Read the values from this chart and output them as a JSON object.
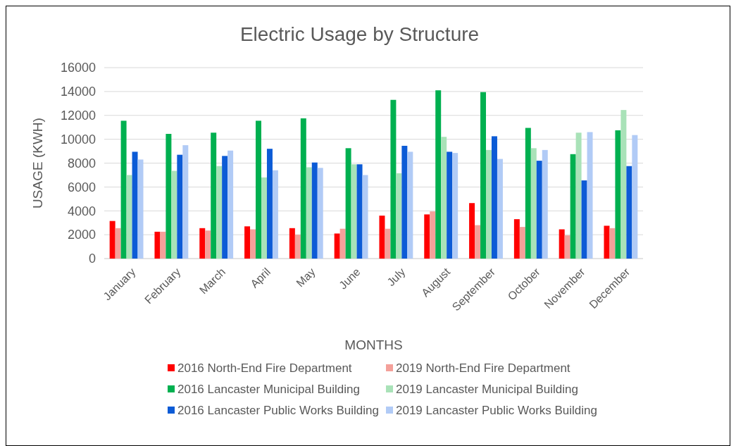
{
  "chart_data": {
    "type": "bar",
    "title": "Electric Usage by Structure",
    "xlabel": "MONTHS",
    "ylabel": "USAGE (KWH)",
    "categories": [
      "January",
      "February",
      "March",
      "April",
      "May",
      "June",
      "July",
      "August",
      "September",
      "October",
      "November",
      "December"
    ],
    "series": [
      {
        "name": "2016 North-End Fire Department",
        "color": "#ff0000",
        "values": [
          3150,
          2250,
          2550,
          2700,
          2550,
          2100,
          3600,
          3700,
          4650,
          3300,
          2450,
          2750
        ]
      },
      {
        "name": "2019 North-End Fire Department",
        "color": "#f4a09a",
        "values": [
          2550,
          2250,
          2350,
          2450,
          2000,
          2500,
          2500,
          3950,
          2800,
          2650,
          1950,
          2550
        ]
      },
      {
        "name": "2016 Lancaster Municipal Building",
        "color": "#00b050",
        "values": [
          11550,
          10450,
          10550,
          11550,
          11750,
          9250,
          13300,
          14100,
          13950,
          10950,
          8750,
          10750
        ]
      },
      {
        "name": "2019 Lancaster Municipal Building",
        "color": "#a9e2b8",
        "values": [
          7000,
          7350,
          7750,
          6800,
          7650,
          7900,
          7150,
          10200,
          9100,
          9250,
          10550,
          12450
        ]
      },
      {
        "name": "2016 Lancaster Public Works Building",
        "color": "#0c5bd6",
        "values": [
          8950,
          8700,
          8600,
          9200,
          8050,
          7900,
          9450,
          8950,
          10250,
          8200,
          6550,
          7750
        ]
      },
      {
        "name": "2019 Lancaster Public Works Building",
        "color": "#b1cbf6",
        "values": [
          8300,
          9500,
          9050,
          7400,
          7600,
          7000,
          8950,
          8850,
          8350,
          9100,
          10600,
          10350
        ]
      }
    ],
    "ylim": [
      0,
      16000
    ],
    "yticks": [
      0,
      2000,
      4000,
      6000,
      8000,
      10000,
      12000,
      14000,
      16000
    ],
    "grid": "y",
    "legend": "bottom"
  }
}
